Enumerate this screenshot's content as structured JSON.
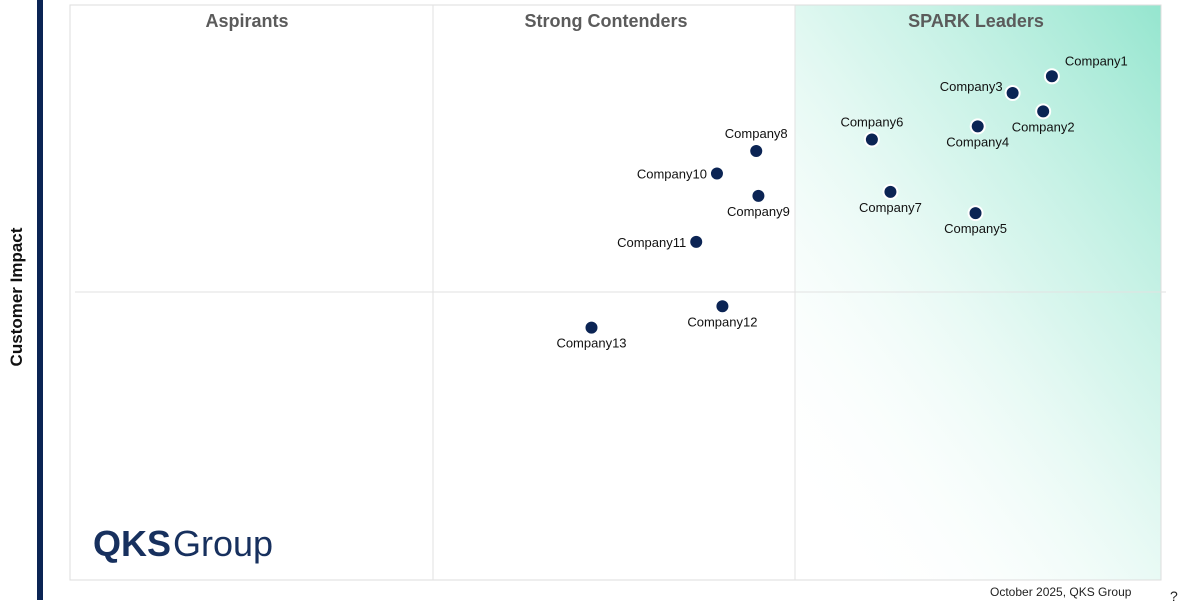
{
  "axis": {
    "y_label": "Customer Impact"
  },
  "footer": {
    "note": "October 2025, QKS Group"
  },
  "logo": {
    "text_qks": "QKS",
    "text_group": "Group"
  },
  "colors": {
    "accent": "#0b2454",
    "leader_gradient": "#8fe4cc",
    "point": "#0b2454"
  },
  "chart_data": {
    "type": "scatter",
    "title": "",
    "xlabel": "",
    "ylabel": "Customer Impact",
    "xlim": [
      0,
      100
    ],
    "ylim": [
      0,
      100
    ],
    "quadrant_titles": [
      "Aspirants",
      "Strong Contenders",
      "SPARK Leaders"
    ],
    "points": [
      {
        "name": "Company1",
        "x": 90.0,
        "y": 87.6,
        "label_pos": "top-right"
      },
      {
        "name": "Company2",
        "x": 89.2,
        "y": 81.5,
        "label_pos": "bottom"
      },
      {
        "name": "Company3",
        "x": 86.4,
        "y": 84.7,
        "label_pos": "top-left"
      },
      {
        "name": "Company4",
        "x": 83.2,
        "y": 78.9,
        "label_pos": "bottom"
      },
      {
        "name": "Company5",
        "x": 83.0,
        "y": 63.8,
        "label_pos": "bottom"
      },
      {
        "name": "Company6",
        "x": 73.5,
        "y": 76.6,
        "label_pos": "top"
      },
      {
        "name": "Company7",
        "x": 75.2,
        "y": 67.5,
        "label_pos": "bottom"
      },
      {
        "name": "Company8",
        "x": 62.9,
        "y": 74.6,
        "label_pos": "top"
      },
      {
        "name": "Company9",
        "x": 63.1,
        "y": 66.8,
        "label_pos": "bottom"
      },
      {
        "name": "Company10",
        "x": 59.3,
        "y": 70.7,
        "label_pos": "left"
      },
      {
        "name": "Company11",
        "x": 57.4,
        "y": 58.8,
        "label_pos": "left"
      },
      {
        "name": "Company12",
        "x": 59.8,
        "y": 47.6,
        "label_pos": "bottom"
      },
      {
        "name": "Company13",
        "x": 47.8,
        "y": 43.9,
        "label_pos": "bottom"
      }
    ]
  }
}
